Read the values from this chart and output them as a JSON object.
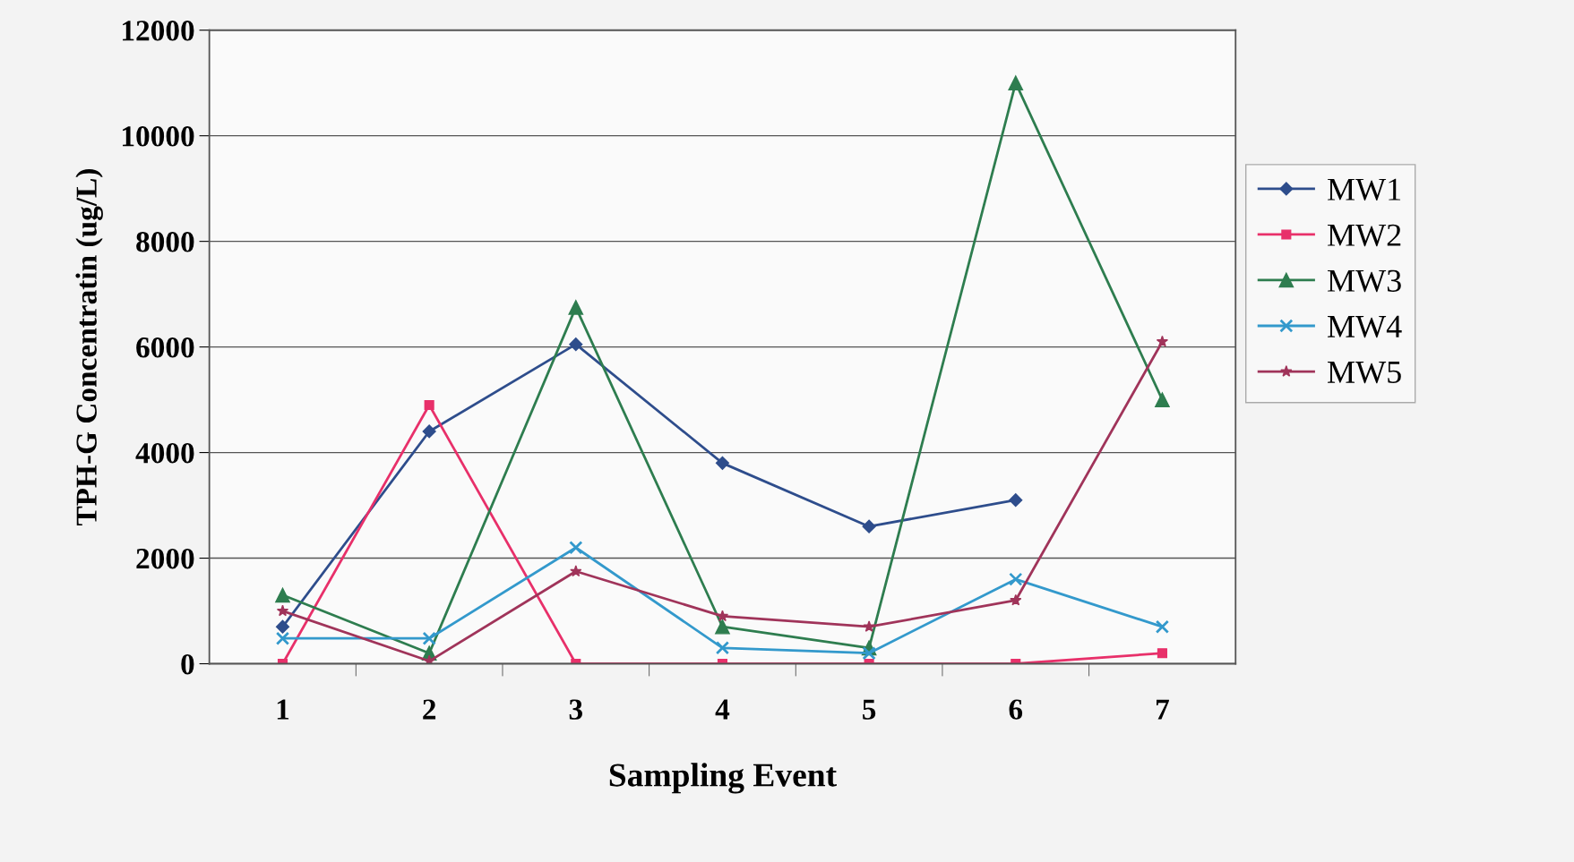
{
  "chart_data": {
    "type": "line",
    "xlabel": "Sampling Event",
    "ylabel": "TPH-G Concentratin (ug/L)",
    "categories": [
      "1",
      "2",
      "3",
      "4",
      "5",
      "6",
      "7"
    ],
    "series": [
      {
        "name": "MW1",
        "color": "#2e4d8c",
        "marker": "diamond",
        "values": [
          700,
          4400,
          6050,
          3800,
          2600,
          3100,
          null
        ]
      },
      {
        "name": "MW2",
        "color": "#e8306a",
        "marker": "square",
        "values": [
          0,
          4900,
          0,
          0,
          0,
          0,
          200
        ]
      },
      {
        "name": "MW3",
        "color": "#2e7d4f",
        "marker": "triangle",
        "values": [
          1300,
          200,
          6750,
          700,
          300,
          11000,
          5000
        ]
      },
      {
        "name": "MW4",
        "color": "#3399cc",
        "marker": "cross",
        "values": [
          480,
          480,
          2200,
          300,
          200,
          1600,
          700
        ]
      },
      {
        "name": "MW5",
        "color": "#a0345a",
        "marker": "star",
        "values": [
          1000,
          50,
          1750,
          900,
          700,
          1200,
          6100
        ]
      }
    ],
    "ylim": [
      0,
      12000
    ],
    "yticks": [
      0,
      2000,
      4000,
      6000,
      8000,
      10000,
      12000
    ],
    "grid": "y",
    "legend": "right",
    "line_style": "solid"
  }
}
